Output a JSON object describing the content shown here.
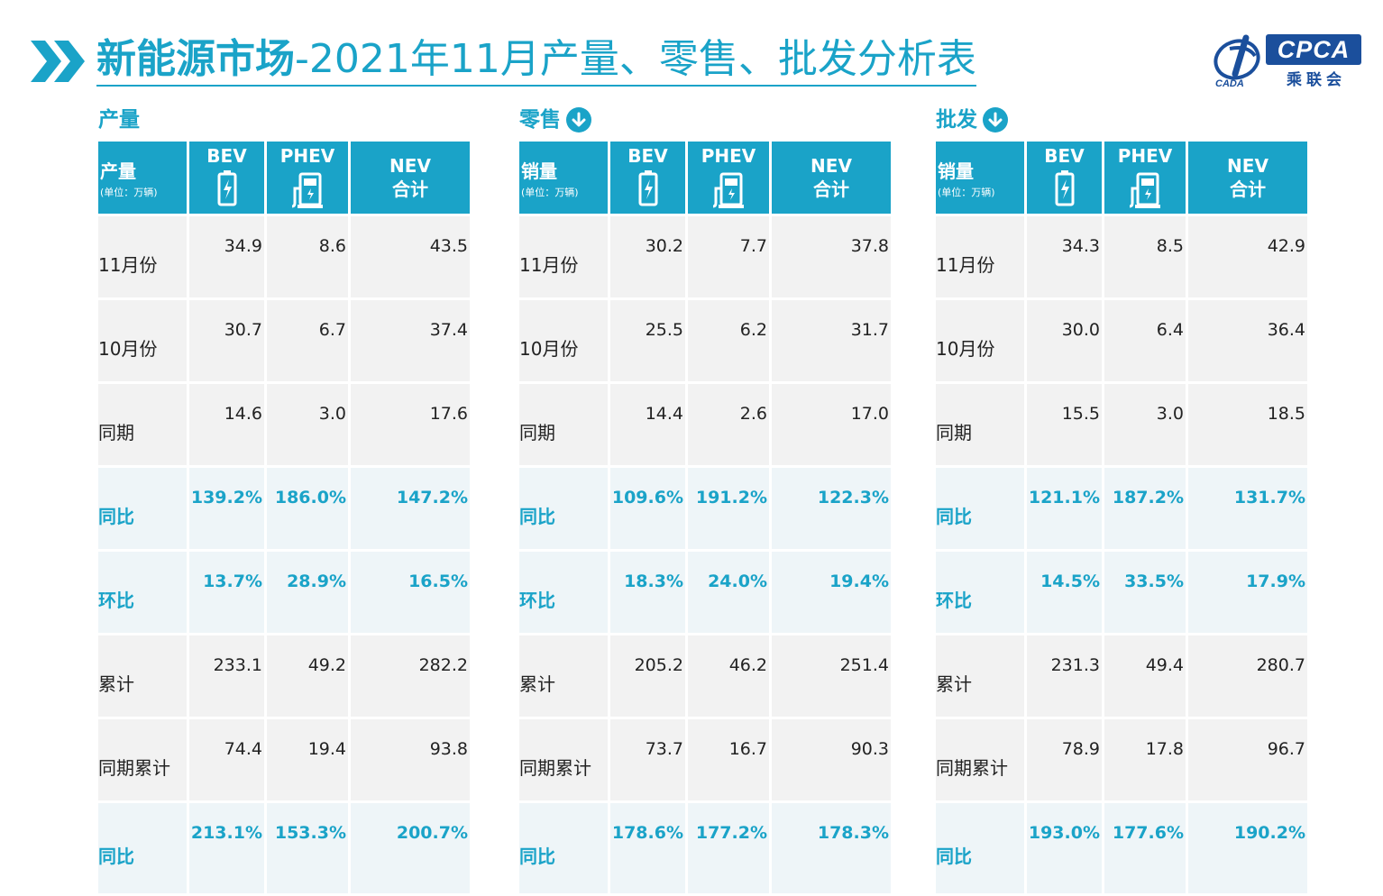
{
  "title": {
    "bold": "新能源市场",
    "rest": "-2021年11月产量、零售、批发分析表"
  },
  "logo": {
    "text": "CPCA",
    "cn": "乘联会",
    "sub": "CADA"
  },
  "colors": {
    "accent": "#1aa3c8",
    "logo_blue": "#1b4f9c",
    "cell_bg": "#f2f2f2"
  },
  "icons": {
    "bev": "battery-icon",
    "phev": "charging-station-icon",
    "down": "down-arrow-icon",
    "chevrons": "double-chevron-icon"
  },
  "sections": [
    {
      "name": "产量",
      "has_arrow": false,
      "header": {
        "first": "产量",
        "unit": "(单位：万辆)",
        "bev": "BEV",
        "phev": "PHEV",
        "nev1": "NEV",
        "nev2": "合计"
      },
      "rows": [
        {
          "label": "11月份",
          "bev": "34.9",
          "phev": "8.6",
          "nev": "43.5"
        },
        {
          "label": "10月份",
          "bev": "30.7",
          "phev": "6.7",
          "nev": "37.4"
        },
        {
          "label": "同期",
          "bev": "14.6",
          "phev": "3.0",
          "nev": "17.6"
        },
        {
          "label": "同比",
          "bev": "139.2%",
          "phev": "186.0%",
          "nev": "147.2%"
        },
        {
          "label": "环比",
          "bev": "13.7%",
          "phev": "28.9%",
          "nev": "16.5%"
        },
        {
          "label": "累计",
          "bev": "233.1",
          "phev": "49.2",
          "nev": "282.2"
        },
        {
          "label": "同期累计",
          "bev": "74.4",
          "phev": "19.4",
          "nev": "93.8"
        },
        {
          "label": "同比",
          "bev": "213.1%",
          "phev": "153.3%",
          "nev": "200.7%"
        }
      ]
    },
    {
      "name": "零售",
      "has_arrow": true,
      "header": {
        "first": "销量",
        "unit": "(单位：万辆)",
        "bev": "BEV",
        "phev": "PHEV",
        "nev1": "NEV",
        "nev2": "合计"
      },
      "rows": [
        {
          "label": "11月份",
          "bev": "30.2",
          "phev": "7.7",
          "nev": "37.8"
        },
        {
          "label": "10月份",
          "bev": "25.5",
          "phev": "6.2",
          "nev": "31.7"
        },
        {
          "label": "同期",
          "bev": "14.4",
          "phev": "2.6",
          "nev": "17.0"
        },
        {
          "label": "同比",
          "bev": "109.6%",
          "phev": "191.2%",
          "nev": "122.3%"
        },
        {
          "label": "环比",
          "bev": "18.3%",
          "phev": "24.0%",
          "nev": "19.4%"
        },
        {
          "label": "累计",
          "bev": "205.2",
          "phev": "46.2",
          "nev": "251.4"
        },
        {
          "label": "同期累计",
          "bev": "73.7",
          "phev": "16.7",
          "nev": "90.3"
        },
        {
          "label": "同比",
          "bev": "178.6%",
          "phev": "177.2%",
          "nev": "178.3%"
        }
      ]
    },
    {
      "name": "批发",
      "has_arrow": true,
      "header": {
        "first": "销量",
        "unit": "(单位：万辆)",
        "bev": "BEV",
        "phev": "PHEV",
        "nev1": "NEV",
        "nev2": "合计"
      },
      "rows": [
        {
          "label": "11月份",
          "bev": "34.3",
          "phev": "8.5",
          "nev": "42.9"
        },
        {
          "label": "10月份",
          "bev": "30.0",
          "phev": "6.4",
          "nev": "36.4"
        },
        {
          "label": "同期",
          "bev": "15.5",
          "phev": "3.0",
          "nev": "18.5"
        },
        {
          "label": "同比",
          "bev": "121.1%",
          "phev": "187.2%",
          "nev": "131.7%"
        },
        {
          "label": "环比",
          "bev": "14.5%",
          "phev": "33.5%",
          "nev": "17.9%"
        },
        {
          "label": "累计",
          "bev": "231.3",
          "phev": "49.4",
          "nev": "280.7"
        },
        {
          "label": "同期累计",
          "bev": "78.9",
          "phev": "17.8",
          "nev": "96.7"
        },
        {
          "label": "同比",
          "bev": "193.0%",
          "phev": "177.6%",
          "nev": "190.2%"
        }
      ]
    }
  ]
}
